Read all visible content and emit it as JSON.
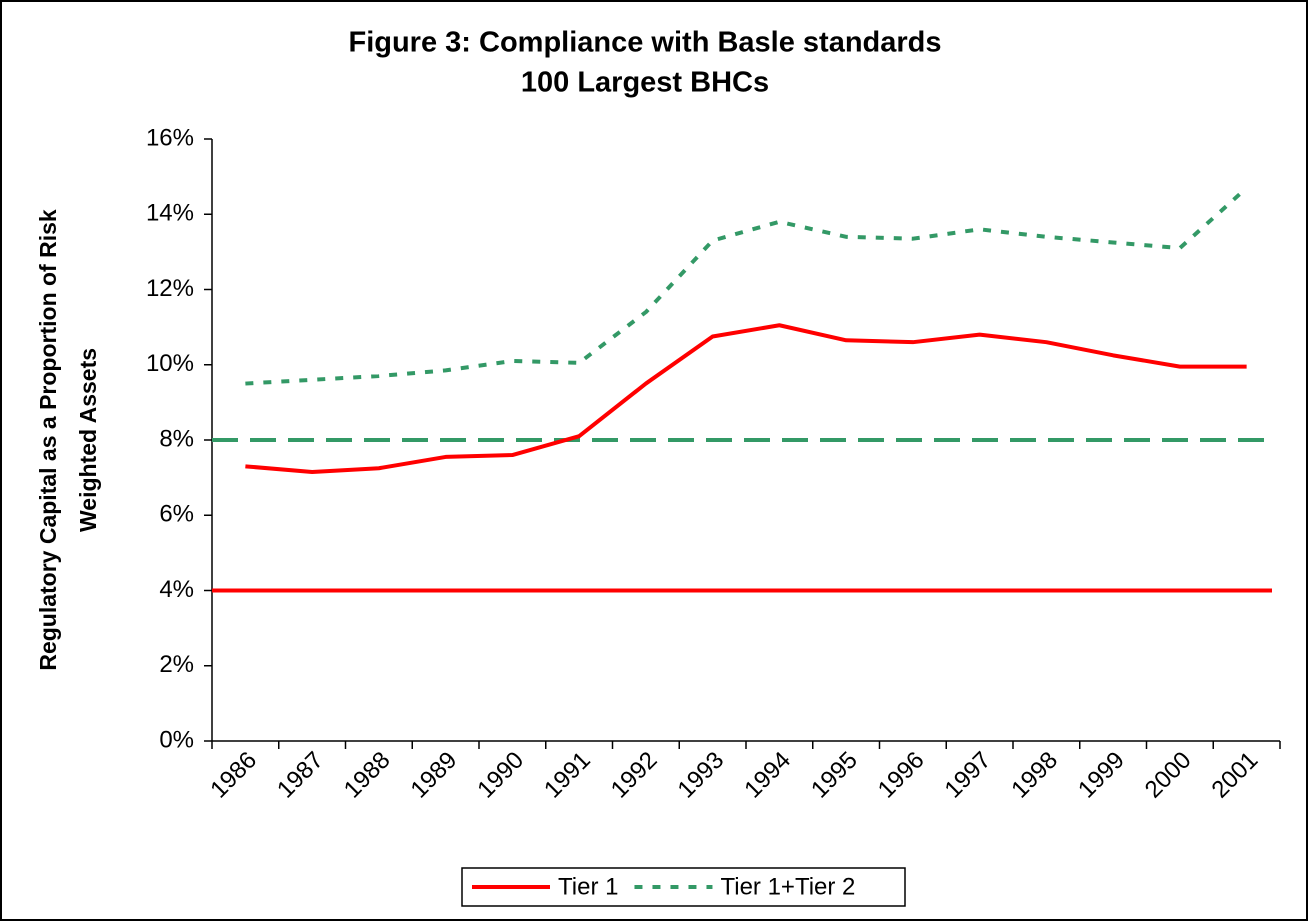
{
  "chart_data": {
    "type": "line",
    "title": [
      "Figure 3: Compliance with Basle standards",
      "100 Largest BHCs"
    ],
    "ylabel": [
      "Regulatory Capital as a Proportion of Risk",
      "Weighted Assets"
    ],
    "categories": [
      "1986",
      "1987",
      "1988",
      "1989",
      "1990",
      "1991",
      "1992",
      "1993",
      "1994",
      "1995",
      "1996",
      "1997",
      "1998",
      "1999",
      "2000",
      "2001"
    ],
    "series": [
      {
        "name": "Tier 1",
        "color": "#ff0000",
        "dash": "solid",
        "values": [
          7.3,
          7.15,
          7.25,
          7.55,
          7.6,
          8.1,
          9.5,
          10.75,
          11.05,
          10.65,
          10.6,
          10.8,
          10.6,
          10.25,
          9.95,
          9.95
        ]
      },
      {
        "name": "Tier 1+Tier 2",
        "color": "#339966",
        "dash": "dotted",
        "values": [
          9.5,
          9.6,
          9.7,
          9.85,
          10.1,
          10.05,
          11.4,
          13.3,
          13.8,
          13.4,
          13.35,
          13.6,
          13.4,
          13.25,
          13.1,
          14.7
        ]
      }
    ],
    "reference_lines": [
      {
        "value": 4,
        "color": "#ff0000",
        "dash": "solid"
      },
      {
        "value": 8,
        "color": "#339966",
        "dash": "dashed"
      }
    ],
    "ylim": [
      0,
      16
    ],
    "yticks": [
      {
        "value": 0,
        "label": "0%"
      },
      {
        "value": 2,
        "label": "2%"
      },
      {
        "value": 4,
        "label": "4%"
      },
      {
        "value": 6,
        "label": "6%"
      },
      {
        "value": 8,
        "label": "8%"
      },
      {
        "value": 10,
        "label": "10%"
      },
      {
        "value": 12,
        "label": "12%"
      },
      {
        "value": 14,
        "label": "14%"
      },
      {
        "value": 16,
        "label": "16%"
      }
    ],
    "legend": "bottom"
  }
}
